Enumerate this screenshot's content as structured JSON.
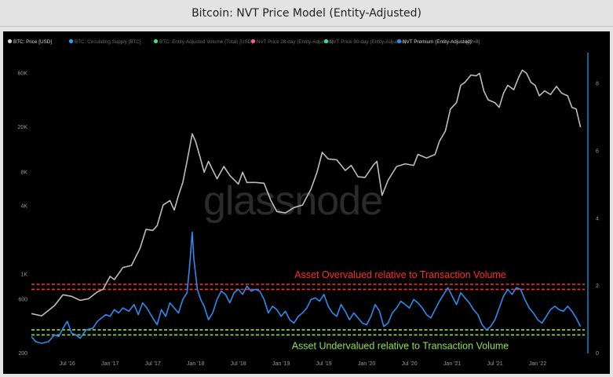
{
  "page": {
    "title": "Bitcoin: NVT Price Model (Entity-Adjusted)"
  },
  "colors": {
    "background": "#000000",
    "btc_price": "#bdbdbd",
    "nvt_premium": "#2a8cf0",
    "overvalued_band": "#ff2a2a",
    "undervalued_band": "#8fe04a",
    "right_axis": "#2aa3f0"
  },
  "chart_data": {
    "type": "line",
    "watermark": "glassnode",
    "legend_placement": "top-left",
    "legend": [
      {
        "label": "BTC: Price [USD]",
        "color": "#cfcfcf",
        "active": true
      },
      {
        "label": "BTC: Circulating Supply [BTC]",
        "color": "#2aa3f0",
        "active": false
      },
      {
        "label": "BTC: Entity-Adjusted Volume (Total) [USD]",
        "color": "#41e07a",
        "active": false
      },
      {
        "label": "NVT Price 28-day (Entity-Adjusted)",
        "color": "#ff5a8a",
        "active": false
      },
      {
        "label": "NVT Price 90-day (Entity-Adjusted)",
        "color": "#35e0a0",
        "active": false
      },
      {
        "label": "NVT Premium (Entity-Adjusted)",
        "color": "#2a8cf0",
        "active": true
      }
    ],
    "legend_extra": "[y2=8]",
    "x_ticks": [
      "Jul '16",
      "Jan '17",
      "Jul '17",
      "Jan '18",
      "Jul '18",
      "Jan '19",
      "Jul '19",
      "Jan '20",
      "Jul '20",
      "Jan '21",
      "Jul '21",
      "Jan '22"
    ],
    "x_range": [
      2016.08,
      2022.55
    ],
    "y_left": {
      "scale": "log",
      "ticks": [
        "200",
        "600",
        "1K",
        "4K",
        "8K",
        "20K",
        "60K"
      ],
      "tick_values": [
        200,
        600,
        1000,
        4000,
        8000,
        20000,
        60000
      ],
      "range": [
        200,
        90000
      ]
    },
    "y_right": {
      "scale": "linear",
      "ticks": [
        "0",
        "2",
        "4",
        "6",
        "8"
      ],
      "tick_values": [
        0,
        2,
        4,
        6,
        8
      ],
      "range": [
        0,
        8.9
      ]
    },
    "series": [
      {
        "name": "BTC: Price [USD]",
        "axis": "left",
        "points": [
          [
            2016.08,
            450
          ],
          [
            2016.2,
            430
          ],
          [
            2016.35,
            530
          ],
          [
            2016.45,
            660
          ],
          [
            2016.55,
            640
          ],
          [
            2016.65,
            590
          ],
          [
            2016.75,
            610
          ],
          [
            2016.85,
            700
          ],
          [
            2016.92,
            740
          ],
          [
            2017.0,
            960
          ],
          [
            2017.05,
            900
          ],
          [
            2017.15,
            1150
          ],
          [
            2017.25,
            1200
          ],
          [
            2017.35,
            1700
          ],
          [
            2017.42,
            2500
          ],
          [
            2017.5,
            2450
          ],
          [
            2017.55,
            2700
          ],
          [
            2017.62,
            4100
          ],
          [
            2017.7,
            4500
          ],
          [
            2017.75,
            3700
          ],
          [
            2017.8,
            5000
          ],
          [
            2017.85,
            6500
          ],
          [
            2017.9,
            10000
          ],
          [
            2017.96,
            17500
          ],
          [
            2018.0,
            15000
          ],
          [
            2018.05,
            11000
          ],
          [
            2018.1,
            8000
          ],
          [
            2018.15,
            10000
          ],
          [
            2018.25,
            7000
          ],
          [
            2018.33,
            9000
          ],
          [
            2018.4,
            7500
          ],
          [
            2018.5,
            6300
          ],
          [
            2018.55,
            8000
          ],
          [
            2018.6,
            6500
          ],
          [
            2018.7,
            6500
          ],
          [
            2018.8,
            6400
          ],
          [
            2018.88,
            4500
          ],
          [
            2018.95,
            3600
          ],
          [
            2019.05,
            3500
          ],
          [
            2019.15,
            3900
          ],
          [
            2019.25,
            4100
          ],
          [
            2019.35,
            5700
          ],
          [
            2019.42,
            8000
          ],
          [
            2019.48,
            12000
          ],
          [
            2019.55,
            10500
          ],
          [
            2019.65,
            10300
          ],
          [
            2019.75,
            8300
          ],
          [
            2019.82,
            9200
          ],
          [
            2019.9,
            7300
          ],
          [
            2019.98,
            7200
          ],
          [
            2020.08,
            9300
          ],
          [
            2020.12,
            10000
          ],
          [
            2020.18,
            5000
          ],
          [
            2020.25,
            6800
          ],
          [
            2020.35,
            9000
          ],
          [
            2020.45,
            9500
          ],
          [
            2020.55,
            9200
          ],
          [
            2020.6,
            11500
          ],
          [
            2020.7,
            10700
          ],
          [
            2020.8,
            11500
          ],
          [
            2020.85,
            15000
          ],
          [
            2020.92,
            18500
          ],
          [
            2020.98,
            29000
          ],
          [
            2021.05,
            33000
          ],
          [
            2021.1,
            47000
          ],
          [
            2021.15,
            50000
          ],
          [
            2021.22,
            58000
          ],
          [
            2021.28,
            57000
          ],
          [
            2021.32,
            60000
          ],
          [
            2021.37,
            42000
          ],
          [
            2021.42,
            35000
          ],
          [
            2021.5,
            33000
          ],
          [
            2021.55,
            30000
          ],
          [
            2021.6,
            40000
          ],
          [
            2021.65,
            47000
          ],
          [
            2021.72,
            43000
          ],
          [
            2021.78,
            56000
          ],
          [
            2021.82,
            64000
          ],
          [
            2021.87,
            60000
          ],
          [
            2021.92,
            50000
          ],
          [
            2021.97,
            47000
          ],
          [
            2022.02,
            38000
          ],
          [
            2022.08,
            42000
          ],
          [
            2022.15,
            39000
          ],
          [
            2022.22,
            46000
          ],
          [
            2022.28,
            40000
          ],
          [
            2022.35,
            38000
          ],
          [
            2022.4,
            30000
          ],
          [
            2022.45,
            29000
          ],
          [
            2022.5,
            20000
          ]
        ]
      },
      {
        "name": "NVT Premium (Entity-Adjusted)",
        "axis": "right",
        "points": [
          [
            2016.08,
            0.5
          ],
          [
            2016.13,
            0.35
          ],
          [
            2016.2,
            0.3
          ],
          [
            2016.28,
            0.35
          ],
          [
            2016.35,
            0.55
          ],
          [
            2016.4,
            0.5
          ],
          [
            2016.45,
            0.75
          ],
          [
            2016.5,
            0.95
          ],
          [
            2016.55,
            0.6
          ],
          [
            2016.6,
            0.55
          ],
          [
            2016.65,
            0.45
          ],
          [
            2016.72,
            0.7
          ],
          [
            2016.8,
            0.75
          ],
          [
            2016.85,
            0.95
          ],
          [
            2016.9,
            1.05
          ],
          [
            2016.95,
            1.15
          ],
          [
            2017.0,
            1.1
          ],
          [
            2017.05,
            1.3
          ],
          [
            2017.1,
            1.2
          ],
          [
            2017.15,
            1.35
          ],
          [
            2017.22,
            1.25
          ],
          [
            2017.28,
            1.45
          ],
          [
            2017.33,
            1.15
          ],
          [
            2017.38,
            1.5
          ],
          [
            2017.43,
            1.35
          ],
          [
            2017.5,
            1.05
          ],
          [
            2017.55,
            0.85
          ],
          [
            2017.6,
            1.3
          ],
          [
            2017.65,
            1.1
          ],
          [
            2017.7,
            1.5
          ],
          [
            2017.75,
            1.35
          ],
          [
            2017.8,
            1.2
          ],
          [
            2017.85,
            1.6
          ],
          [
            2017.9,
            1.8
          ],
          [
            2017.93,
            2.6
          ],
          [
            2017.96,
            3.6
          ],
          [
            2017.98,
            2.8
          ],
          [
            2018.02,
            1.9
          ],
          [
            2018.06,
            1.6
          ],
          [
            2018.1,
            1.4
          ],
          [
            2018.15,
            1.0
          ],
          [
            2018.2,
            1.2
          ],
          [
            2018.25,
            1.6
          ],
          [
            2018.3,
            1.85
          ],
          [
            2018.35,
            1.75
          ],
          [
            2018.4,
            1.5
          ],
          [
            2018.45,
            1.8
          ],
          [
            2018.5,
            1.9
          ],
          [
            2018.55,
            1.75
          ],
          [
            2018.6,
            2.0
          ],
          [
            2018.65,
            1.85
          ],
          [
            2018.7,
            1.9
          ],
          [
            2018.75,
            1.85
          ],
          [
            2018.8,
            1.6
          ],
          [
            2018.85,
            1.2
          ],
          [
            2018.9,
            1.4
          ],
          [
            2018.95,
            1.3
          ],
          [
            2019.0,
            1.1
          ],
          [
            2019.05,
            1.25
          ],
          [
            2019.1,
            1.0
          ],
          [
            2019.15,
            0.9
          ],
          [
            2019.2,
            1.1
          ],
          [
            2019.25,
            1.2
          ],
          [
            2019.3,
            1.35
          ],
          [
            2019.35,
            1.6
          ],
          [
            2019.4,
            1.65
          ],
          [
            2019.45,
            1.55
          ],
          [
            2019.5,
            1.75
          ],
          [
            2019.55,
            1.4
          ],
          [
            2019.6,
            1.2
          ],
          [
            2019.65,
            1.1
          ],
          [
            2019.7,
            1.45
          ],
          [
            2019.75,
            1.25
          ],
          [
            2019.8,
            1.0
          ],
          [
            2019.85,
            1.2
          ],
          [
            2019.9,
            1.05
          ],
          [
            2019.95,
            0.9
          ],
          [
            2020.0,
            0.85
          ],
          [
            2020.05,
            1.1
          ],
          [
            2020.1,
            1.45
          ],
          [
            2020.15,
            1.25
          ],
          [
            2020.2,
            0.8
          ],
          [
            2020.25,
            0.9
          ],
          [
            2020.3,
            1.2
          ],
          [
            2020.35,
            1.35
          ],
          [
            2020.4,
            1.55
          ],
          [
            2020.45,
            1.45
          ],
          [
            2020.5,
            1.35
          ],
          [
            2020.55,
            1.6
          ],
          [
            2020.6,
            1.5
          ],
          [
            2020.65,
            1.35
          ],
          [
            2020.7,
            1.15
          ],
          [
            2020.75,
            1.05
          ],
          [
            2020.8,
            1.3
          ],
          [
            2020.85,
            1.55
          ],
          [
            2020.9,
            1.75
          ],
          [
            2020.95,
            1.95
          ],
          [
            2021.0,
            1.7
          ],
          [
            2021.05,
            1.45
          ],
          [
            2021.1,
            1.8
          ],
          [
            2021.15,
            1.65
          ],
          [
            2021.2,
            1.5
          ],
          [
            2021.25,
            1.3
          ],
          [
            2021.3,
            1.15
          ],
          [
            2021.35,
            0.85
          ],
          [
            2021.4,
            0.7
          ],
          [
            2021.45,
            0.8
          ],
          [
            2021.5,
            1.0
          ],
          [
            2021.55,
            1.35
          ],
          [
            2021.6,
            1.7
          ],
          [
            2021.65,
            1.9
          ],
          [
            2021.7,
            1.75
          ],
          [
            2021.75,
            1.95
          ],
          [
            2021.8,
            1.9
          ],
          [
            2021.85,
            1.6
          ],
          [
            2021.9,
            1.35
          ],
          [
            2021.95,
            1.2
          ],
          [
            2022.0,
            1.0
          ],
          [
            2022.05,
            0.9
          ],
          [
            2022.1,
            1.1
          ],
          [
            2022.15,
            1.3
          ],
          [
            2022.2,
            1.4
          ],
          [
            2022.25,
            1.3
          ],
          [
            2022.3,
            1.25
          ],
          [
            2022.35,
            1.4
          ],
          [
            2022.4,
            1.25
          ],
          [
            2022.45,
            1.05
          ],
          [
            2022.5,
            0.8
          ]
        ]
      }
    ],
    "bands": [
      {
        "label": "Asset Overvalued relative to Transaction Volume",
        "y_from": 1.9,
        "y_to": 2.05,
        "color": "#ff2a2a"
      },
      {
        "label": "Asset Undervalued relative to Transaction Volume",
        "y_from": 0.55,
        "y_to": 0.7,
        "color": "#8fe04a"
      }
    ]
  }
}
